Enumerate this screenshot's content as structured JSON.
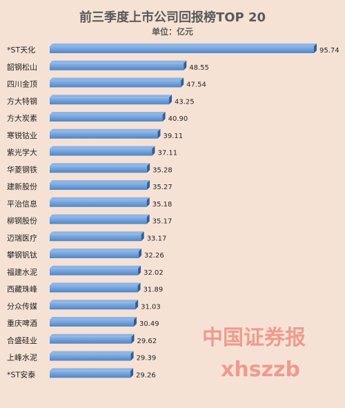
{
  "header": {
    "title": "前三季度上市公司回报榜TOP 20",
    "subtitle": "单位：亿元"
  },
  "watermark": {
    "line1": "中国证券报",
    "line2": "xhszzb"
  },
  "colors": {
    "background": "#f6e2d5",
    "bar_top": "#8db4e6",
    "bar_main": "#4f86c6",
    "bar_side": "#2f5f9a",
    "watermark": "#e86056"
  },
  "chart_data": {
    "type": "bar",
    "orientation": "horizontal",
    "title": "前三季度上市公司回报榜TOP 20",
    "subtitle": "单位：亿元",
    "categories": [
      "*ST天化",
      "韶钢松山",
      "四川金顶",
      "方大特钢",
      "方大炭素",
      "寒锐钴业",
      "紫光学大",
      "华菱钢铁",
      "建新股份",
      "平治信息",
      "柳钢股份",
      "迈瑞医疗",
      "攀钢钒钛",
      "福建水泥",
      "西藏珠峰",
      "分众传媒",
      "重庆啤酒",
      "合盛硅业",
      "上峰水泥",
      "*ST安泰"
    ],
    "values": [
      95.74,
      48.55,
      47.54,
      43.25,
      40.9,
      39.11,
      37.11,
      35.28,
      35.27,
      35.18,
      35.17,
      33.17,
      32.26,
      32.02,
      31.89,
      31.03,
      30.49,
      29.62,
      29.39,
      29.26
    ],
    "value_labels": [
      "95.74",
      "48.55",
      "47.54",
      "43.25",
      "40.90",
      "39.11",
      "37.11",
      "35.28",
      "35.27",
      "35.18",
      "35.17",
      "33.17",
      "32.26",
      "32.02",
      "31.89",
      "31.03",
      "30.49",
      "29.62",
      "29.39",
      "29.26"
    ],
    "xlim": [
      0,
      95.74
    ],
    "grid": false,
    "legend": "none"
  }
}
